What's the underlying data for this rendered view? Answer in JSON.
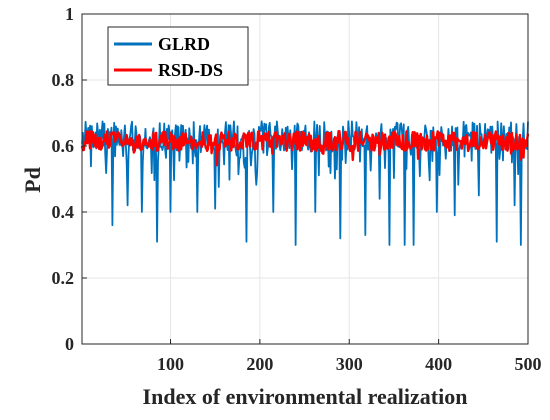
{
  "chart_data": {
    "type": "line",
    "title": "",
    "xlabel": "Index of environmental realization",
    "ylabel": "Pd",
    "xlim": [
      1,
      500
    ],
    "ylim": [
      0,
      1
    ],
    "xticks": [
      100,
      200,
      300,
      400,
      500
    ],
    "xtick_labels": [
      "100",
      "200",
      "300",
      "400",
      "500"
    ],
    "yticks": [
      0,
      0.2,
      0.4,
      0.6,
      0.8,
      1
    ],
    "ytick_labels": [
      "0",
      "0.2",
      "0.4",
      "0.6",
      "0.8",
      "1"
    ],
    "grid": true,
    "legend_position": "top-left",
    "series": [
      {
        "name": "GLRD",
        "color": "#0072BD",
        "stats": {
          "n": 500,
          "baseline": 0.63,
          "upper_noise": 0.045,
          "max": 0.74,
          "min": 0.3
        },
        "dips": [
          {
            "x": 35,
            "y": 0.36
          },
          {
            "x": 52,
            "y": 0.42
          },
          {
            "x": 68,
            "y": 0.4
          },
          {
            "x": 85,
            "y": 0.31
          },
          {
            "x": 100,
            "y": 0.4
          },
          {
            "x": 130,
            "y": 0.4
          },
          {
            "x": 150,
            "y": 0.41
          },
          {
            "x": 185,
            "y": 0.31
          },
          {
            "x": 215,
            "y": 0.4
          },
          {
            "x": 240,
            "y": 0.3
          },
          {
            "x": 262,
            "y": 0.4
          },
          {
            "x": 290,
            "y": 0.32
          },
          {
            "x": 318,
            "y": 0.33
          },
          {
            "x": 334,
            "y": 0.44
          },
          {
            "x": 345,
            "y": 0.3
          },
          {
            "x": 362,
            "y": 0.3
          },
          {
            "x": 372,
            "y": 0.3
          },
          {
            "x": 398,
            "y": 0.4
          },
          {
            "x": 418,
            "y": 0.39
          },
          {
            "x": 445,
            "y": 0.45
          },
          {
            "x": 465,
            "y": 0.31
          },
          {
            "x": 485,
            "y": 0.42
          },
          {
            "x": 492,
            "y": 0.3
          }
        ]
      },
      {
        "name": "RSD-DS",
        "color": "#FF0000",
        "stats": {
          "n": 500,
          "baseline": 0.615,
          "noise": 0.03,
          "max": 0.68,
          "min": 0.53
        }
      }
    ]
  }
}
